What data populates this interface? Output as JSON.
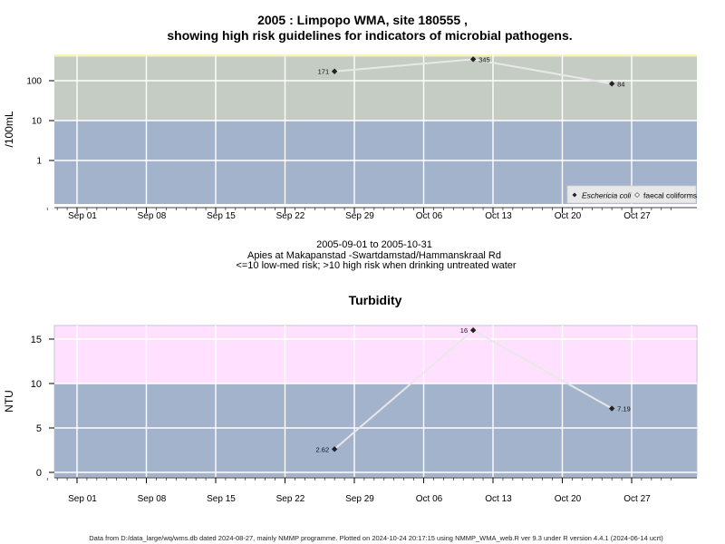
{
  "title": {
    "line1": "2005 : Limpopo WMA, site 180555 ,",
    "line2": "showing high risk guidelines for indicators of microbial pathogens."
  },
  "subtitle": {
    "range": "2005-09-01 to 2005-10-31",
    "site": "Apies at Makapanstad -Swartdamstad/Hammanskraal Rd",
    "risk": "<=10 low-med risk; >10 high risk when drinking untreated water"
  },
  "footer": "Data from D:/data_large/wq/wms.db dated 2024-08-27, mainly NMMP programme. Plotted on 2024-10-24 20:17:15 using NMMP_WMA_web.R ver 9.3 under R version 4.4.1 (2024-06-14 ucrt)",
  "colors": {
    "panel_low": "#a3b3cc",
    "panel_high_microbial": "#c4ccc4",
    "panel_high_turbidity": "#ffe0ff",
    "high_edge_microbial": "#f5f5bc",
    "line": "#e8e8e8",
    "grid": "#ffffff",
    "point": "#222222"
  },
  "chart_data": [
    {
      "type": "line",
      "title": "2005 : Limpopo WMA, site 180555 , showing high risk guidelines for indicators of microbial pathogens.",
      "ylabel": "/100mL",
      "y_scale": "log",
      "yticks": [
        "1",
        "10",
        "100"
      ],
      "threshold": 10,
      "threshold_label": "<=10 low-med risk; >10 high risk when drinking untreated water",
      "xticks": [
        "Sep 01",
        "Sep 08",
        "Sep 15",
        "Sep 22",
        "Sep 29",
        "Oct 06",
        "Oct 13",
        "Oct 20",
        "Oct 27"
      ],
      "xlim": [
        "2005-08-29",
        "2005-10-31"
      ],
      "grid": true,
      "legend_position": "bottom-right",
      "legend": [
        "Eschericia coli",
        "faecal coliforms"
      ],
      "series": [
        {
          "name": "Eschericia coli",
          "points": [
            {
              "x": "2005-09-27",
              "y": 171,
              "label": "171"
            },
            {
              "x": "2005-10-11",
              "y": 345,
              "label": "345"
            },
            {
              "x": "2005-10-25",
              "y": 84,
              "label": "84"
            }
          ]
        }
      ]
    },
    {
      "type": "line",
      "title": "Turbidity",
      "ylabel": "NTU",
      "y_scale": "linear",
      "yticks": [
        "0",
        "5",
        "10",
        "15"
      ],
      "ylim": [
        -0.5,
        16.5
      ],
      "threshold": 10,
      "xticks": [
        "Sep 01",
        "Sep 08",
        "Sep 15",
        "Sep 22",
        "Sep 29",
        "Oct 06",
        "Oct 13",
        "Oct 20",
        "Oct 27"
      ],
      "xlim": [
        "2005-08-29",
        "2005-10-31"
      ],
      "grid": true,
      "series": [
        {
          "points": [
            {
              "x": "2005-09-27",
              "y": 2.62,
              "label": "2.62"
            },
            {
              "x": "2005-10-11",
              "y": 16,
              "label": "16"
            },
            {
              "x": "2005-10-25",
              "y": 7.19,
              "label": "7.19"
            }
          ]
        }
      ]
    }
  ]
}
